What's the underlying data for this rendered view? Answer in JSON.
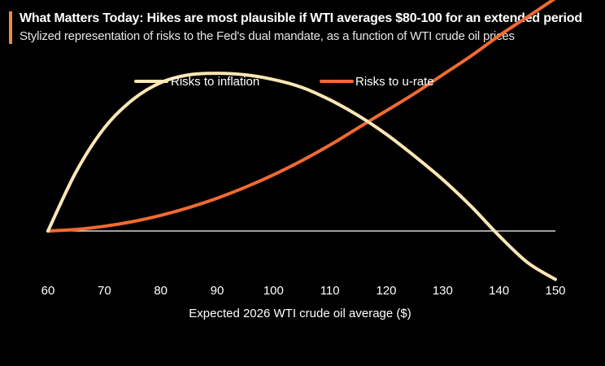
{
  "header": {
    "title": "What Matters Today: Hikes are most plausible if WTI averages $80-100 for an extended period",
    "subtitle": "Stylized representation of risks to the Fed's dual mandate, as a function of WTI crude oil prices",
    "accent_color": "#f08a3c"
  },
  "chart_data": {
    "type": "line",
    "title": "What Matters Today: Hikes are most plausible if WTI averages $80-100 for an extended period",
    "subtitle": "Stylized representation of risks to the Fed's dual mandate, as a function of WTI crude oil prices",
    "xlabel": "Expected 2026 WTI crude oil average ($)",
    "ylabel": "",
    "xlim": [
      60,
      150
    ],
    "ylim": [
      -0.3,
      1.4
    ],
    "x_ticks": [
      60,
      70,
      80,
      90,
      100,
      110,
      120,
      130,
      140,
      150
    ],
    "baseline": 0,
    "grid": false,
    "legend_position": "top-center",
    "series": [
      {
        "name": "Risks to inflation",
        "color": "#fde6b5",
        "x": [
          60,
          65,
          70,
          75,
          80,
          85,
          90,
          95,
          100,
          105,
          110,
          115,
          120,
          125,
          130,
          135,
          140,
          145,
          150
        ],
        "y": [
          0,
          0.38,
          0.66,
          0.84,
          0.95,
          1.0,
          1.01,
          1.0,
          0.97,
          0.92,
          0.84,
          0.74,
          0.62,
          0.48,
          0.33,
          0.16,
          -0.03,
          -0.2,
          -0.31
        ]
      },
      {
        "name": "Risks to u-rate",
        "color": "#f26a30",
        "x": [
          60,
          65,
          70,
          75,
          80,
          85,
          90,
          95,
          100,
          105,
          110,
          115,
          120,
          125,
          130,
          135,
          140,
          145,
          150
        ],
        "y": [
          0,
          0.01,
          0.03,
          0.06,
          0.1,
          0.15,
          0.21,
          0.28,
          0.36,
          0.45,
          0.55,
          0.66,
          0.77,
          0.88,
          1.0,
          1.12,
          1.25,
          1.37,
          1.49
        ]
      }
    ]
  }
}
